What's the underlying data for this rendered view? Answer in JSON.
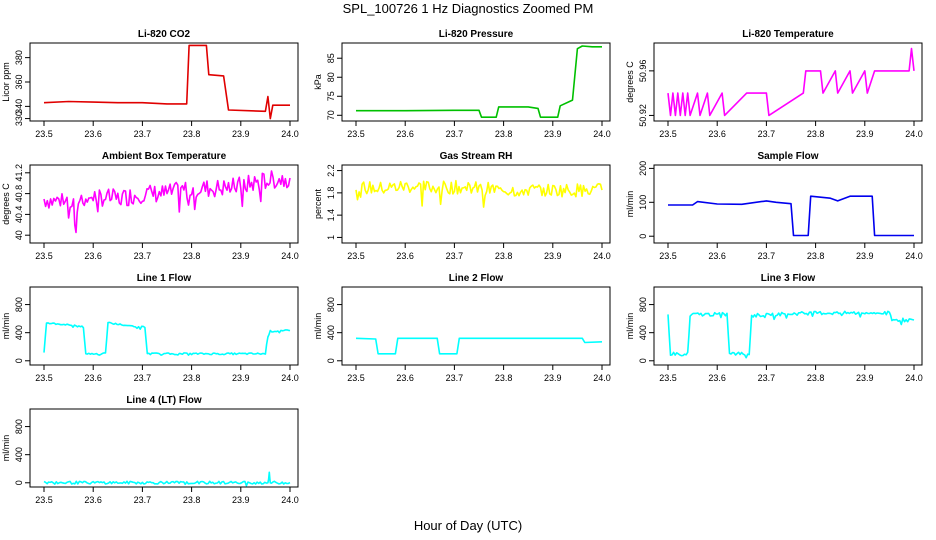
{
  "page": {
    "title": "SPL_100726  1 Hz Diagnostics Zoomed PM",
    "xlabel": "Hour of Day (UTC)"
  },
  "chart_data": [
    {
      "type": "line",
      "title": "Li-820 CO2",
      "ylabel": "Licor ppm",
      "color": "#e00000",
      "xlim": [
        23.5,
        24.0
      ],
      "ylim": [
        328,
        392
      ],
      "xticks": [
        "23.5",
        "23.6",
        "23.7",
        "23.8",
        "23.9",
        "24.0"
      ],
      "yticks": [
        330,
        340,
        360,
        380
      ],
      "x": [
        23.5,
        23.55,
        23.6,
        23.65,
        23.7,
        23.75,
        23.79,
        23.795,
        23.83,
        23.835,
        23.865,
        23.875,
        23.95,
        23.955,
        23.96,
        23.965,
        23.98,
        24.0
      ],
      "y": [
        343,
        344,
        343.5,
        343,
        343,
        342,
        342,
        390,
        390,
        366,
        365,
        337,
        336,
        348,
        330,
        341,
        341,
        341
      ]
    },
    {
      "type": "line",
      "title": "Li-820 Pressure",
      "ylabel": "kPa",
      "color": "#00c000",
      "xlim": [
        23.5,
        24.0
      ],
      "ylim": [
        68.5,
        89
      ],
      "xticks": [
        "23.5",
        "23.6",
        "23.7",
        "23.8",
        "23.9",
        "24.0"
      ],
      "yticks": [
        70,
        75,
        80,
        85
      ],
      "x": [
        23.5,
        23.6,
        23.7,
        23.75,
        23.755,
        23.785,
        23.79,
        23.85,
        23.87,
        23.875,
        23.91,
        23.915,
        23.94,
        23.95,
        23.96,
        23.98,
        24.0
      ],
      "y": [
        71.2,
        71.2,
        71.3,
        71.3,
        69.5,
        69.5,
        72.2,
        72.2,
        71.8,
        69.5,
        69.5,
        72.5,
        74,
        87.5,
        88.2,
        88,
        88
      ]
    },
    {
      "type": "line",
      "title": "Li-820 Temperature",
      "ylabel": "degrees C",
      "color": "#ff00ff",
      "xlim": [
        23.5,
        24.0
      ],
      "ylim": [
        50.915,
        50.985
      ],
      "xticks": [
        "23.5",
        "23.6",
        "23.7",
        "23.8",
        "23.9",
        "24.0"
      ],
      "yticks": [
        50.92,
        50.96
      ],
      "x": [
        23.5,
        23.505,
        23.51,
        23.515,
        23.52,
        23.525,
        23.53,
        23.535,
        23.54,
        23.545,
        23.56,
        23.565,
        23.58,
        23.585,
        23.61,
        23.615,
        23.66,
        23.7,
        23.705,
        23.775,
        23.78,
        23.81,
        23.815,
        23.84,
        23.845,
        23.87,
        23.875,
        23.9,
        23.905,
        23.92,
        23.99,
        23.995,
        24.0
      ],
      "y": [
        50.94,
        50.92,
        50.94,
        50.92,
        50.94,
        50.92,
        50.94,
        50.92,
        50.94,
        50.92,
        50.94,
        50.92,
        50.94,
        50.92,
        50.94,
        50.92,
        50.94,
        50.94,
        50.92,
        50.94,
        50.96,
        50.96,
        50.94,
        50.96,
        50.94,
        50.96,
        50.94,
        50.96,
        50.94,
        50.96,
        50.96,
        50.98,
        50.96
      ]
    },
    {
      "type": "line",
      "title": "Ambient Box Temperature",
      "ylabel": "degrees C",
      "color": "#ff00ff",
      "xlim": [
        23.5,
        24.0
      ],
      "ylim": [
        39.85,
        41.35
      ],
      "xticks": [
        "23.5",
        "23.6",
        "23.7",
        "23.8",
        "23.9",
        "24.0"
      ],
      "yticks": [
        40.0,
        40.4,
        40.8,
        41.2
      ],
      "x": [
        23.5,
        23.52,
        23.54,
        23.56,
        23.565,
        23.57,
        23.6,
        23.65,
        23.7,
        23.75,
        23.8,
        23.85,
        23.9,
        23.95,
        24.0
      ],
      "y": [
        40.7,
        40.65,
        40.7,
        40.6,
        39.9,
        40.7,
        40.75,
        40.7,
        40.8,
        40.8,
        40.9,
        40.9,
        40.95,
        41.05,
        41.1
      ]
    },
    {
      "type": "line",
      "title": "Gas Stream RH",
      "ylabel": "percent",
      "color": "#ffff00",
      "xlim": [
        23.5,
        24.0
      ],
      "ylim": [
        0.9,
        2.3
      ],
      "xticks": [
        "23.5",
        "23.6",
        "23.7",
        "23.8",
        "23.9",
        "24.0"
      ],
      "yticks": [
        1.0,
        1.4,
        1.8,
        2.2
      ],
      "x": [
        23.5,
        23.55,
        23.6,
        23.65,
        23.7,
        23.75,
        23.8,
        23.85,
        23.9,
        23.95,
        24.0
      ],
      "y": [
        1.9,
        1.88,
        1.92,
        1.9,
        1.9,
        1.88,
        1.85,
        1.85,
        1.85,
        1.85,
        1.85
      ]
    },
    {
      "type": "line",
      "title": "Sample Flow",
      "ylabel": "ml/min",
      "color": "#0000ee",
      "xlim": [
        23.5,
        24.0
      ],
      "ylim": [
        -20,
        210
      ],
      "xticks": [
        "23.5",
        "23.6",
        "23.7",
        "23.8",
        "23.9",
        "24.0"
      ],
      "yticks": [
        0,
        100,
        200
      ],
      "x": [
        23.5,
        23.55,
        23.56,
        23.6,
        23.65,
        23.7,
        23.72,
        23.75,
        23.755,
        23.785,
        23.79,
        23.83,
        23.845,
        23.87,
        23.915,
        23.92,
        24.0
      ],
      "y": [
        92,
        92,
        102,
        95,
        94,
        104,
        100,
        96,
        2,
        2,
        118,
        112,
        104,
        118,
        118,
        2,
        2
      ]
    },
    {
      "type": "line",
      "title": "Line 1 Flow",
      "ylabel": "ml/min",
      "color": "#00ffff",
      "xlim": [
        23.5,
        24.0
      ],
      "ylim": [
        -60,
        1050
      ],
      "xticks": [
        "23.5",
        "23.6",
        "23.7",
        "23.8",
        "23.9",
        "24.0"
      ],
      "yticks": [
        0,
        400,
        800
      ],
      "x": [
        23.5,
        23.505,
        23.55,
        23.58,
        23.585,
        23.625,
        23.63,
        23.67,
        23.705,
        23.71,
        23.8,
        23.95,
        23.955,
        23.96,
        24.0
      ],
      "y": [
        110,
        540,
        510,
        480,
        100,
        100,
        540,
        500,
        480,
        100,
        100,
        100,
        350,
        420,
        430
      ]
    },
    {
      "type": "line",
      "title": "Line 2 Flow",
      "ylabel": "ml/min",
      "color": "#00ffff",
      "xlim": [
        23.5,
        24.0
      ],
      "ylim": [
        -60,
        1050
      ],
      "xticks": [
        "23.5",
        "23.6",
        "23.7",
        "23.8",
        "23.9",
        "24.0"
      ],
      "yticks": [
        0,
        400,
        800
      ],
      "x": [
        23.5,
        23.54,
        23.545,
        23.58,
        23.585,
        23.665,
        23.67,
        23.705,
        23.71,
        23.8,
        23.9,
        23.96,
        23.965,
        24.0
      ],
      "y": [
        320,
        310,
        100,
        100,
        320,
        320,
        100,
        100,
        320,
        320,
        320,
        320,
        260,
        270
      ]
    },
    {
      "type": "line",
      "title": "Line 3 Flow",
      "ylabel": "ml/min",
      "color": "#00ffff",
      "xlim": [
        23.5,
        24.0
      ],
      "ylim": [
        -60,
        1050
      ],
      "xticks": [
        "23.5",
        "23.6",
        "23.7",
        "23.8",
        "23.9",
        "24.0"
      ],
      "yticks": [
        0,
        400,
        800
      ],
      "x": [
        23.5,
        23.505,
        23.54,
        23.545,
        23.62,
        23.625,
        23.665,
        23.67,
        23.7,
        23.8,
        23.95,
        23.955,
        24.0
      ],
      "y": [
        650,
        100,
        100,
        660,
        660,
        100,
        100,
        640,
        660,
        680,
        680,
        580,
        580
      ]
    },
    {
      "type": "line",
      "title": "Line 4 (LT) Flow",
      "ylabel": "ml/min",
      "color": "#00ffff",
      "xlim": [
        23.5,
        24.0
      ],
      "ylim": [
        -60,
        1050
      ],
      "xticks": [
        "23.5",
        "23.6",
        "23.7",
        "23.8",
        "23.9",
        "24.0"
      ],
      "yticks": [
        0,
        400,
        800
      ],
      "x": [
        23.5,
        23.7,
        23.955,
        23.958,
        23.96,
        23.965,
        24.0
      ],
      "y": [
        2,
        2,
        2,
        130,
        2,
        2,
        2
      ]
    }
  ]
}
